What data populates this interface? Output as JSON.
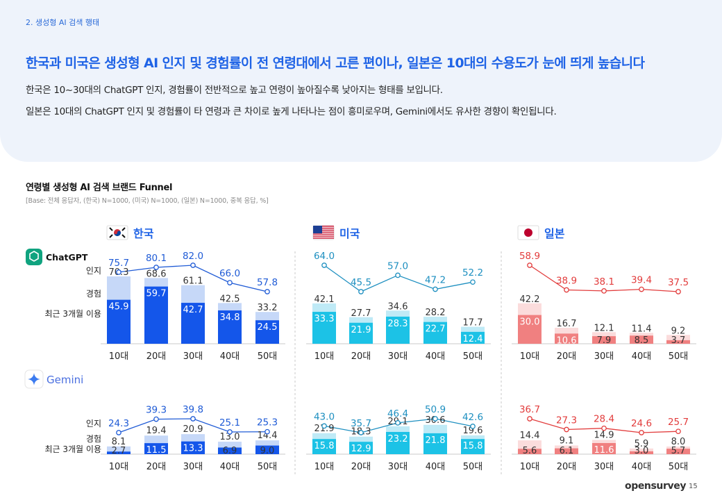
{
  "header": {
    "section_label": "2. 생성형 AI 검색 행태",
    "headline": "한국과 미국은 생성형 AI 인지 및 경험률이 전 연령대에서 고른 편이나, 일본은 10대의 수용도가 눈에 띄게 높습니다",
    "desc_line1": "한국은 10~30대의 ChatGPT 인지, 경험률이 전반적으로 높고 연령이 높아질수록 낮아지는 형태를 보입니다.",
    "desc_line2": "일본은 10대의 ChatGPT 인지 및 경험률이 타 연령과 큰 차이로 높게 나타나는 점이 흥미로우며, Gemini에서도 유사한 경향이 확인됩니다."
  },
  "chart_header": {
    "title": "연령별 생성형 AI 검색 브랜드 Funnel",
    "base_note": "[Base: 전체 응답자, (한국) N=1000, (미국) N=1000, (일본) N=1000, 중복 응답, %]"
  },
  "colors": {
    "accent": "#1f63e6",
    "korea_dark": "#1456ea",
    "korea_light": "#c6d8f8",
    "us_dark": "#1cc2e6",
    "us_light": "#bfeaf6",
    "us_line": "#1d8fc0",
    "japan_dark": "#f08080",
    "japan_light": "#fbdcdc",
    "japan_line": "#e23c3c",
    "korea_line": "#1f5bd6"
  },
  "chart_data": {
    "type": "bar",
    "categories": [
      "10대",
      "20대",
      "30대",
      "40대",
      "50대"
    ],
    "row_labels": {
      "awareness": "인지",
      "experience": "경험",
      "recent": "최근 3개월 이용"
    },
    "brands": [
      {
        "key": "chatgpt",
        "name": "ChatGPT",
        "icon": "chatgpt-logo-icon"
      },
      {
        "key": "gemini",
        "name": "Gemini",
        "icon": "gemini-sparkle-icon"
      }
    ],
    "countries": [
      {
        "key": "korea",
        "name": "한국",
        "flag": "korea-flag-icon"
      },
      {
        "key": "us",
        "name": "미국",
        "flag": "us-flag-icon"
      },
      {
        "key": "japan",
        "name": "일본",
        "flag": "japan-flag-icon"
      }
    ],
    "panels": [
      {
        "brand": "ChatGPT",
        "country": "한국",
        "awareness": [
          75.7,
          80.1,
          82.0,
          66.0,
          57.8
        ],
        "experience": [
          70.3,
          68.6,
          61.1,
          42.5,
          33.2
        ],
        "recent": [
          45.9,
          59.7,
          42.7,
          34.8,
          24.5
        ]
      },
      {
        "brand": "ChatGPT",
        "country": "미국",
        "awareness": [
          64.0,
          45.5,
          57.0,
          47.2,
          52.2
        ],
        "experience": [
          42.1,
          27.7,
          34.6,
          28.2,
          17.7
        ],
        "recent": [
          33.3,
          21.9,
          28.3,
          22.7,
          12.4
        ]
      },
      {
        "brand": "ChatGPT",
        "country": "일본",
        "awareness": [
          58.9,
          38.9,
          38.1,
          39.4,
          37.5
        ],
        "experience": [
          42.2,
          16.7,
          12.1,
          11.4,
          9.2
        ],
        "recent": [
          30.0,
          10.6,
          7.9,
          8.5,
          3.7
        ]
      },
      {
        "brand": "Gemini",
        "country": "한국",
        "awareness": [
          24.3,
          39.3,
          39.8,
          25.1,
          25.3
        ],
        "experience": [
          8.1,
          19.4,
          20.9,
          13.0,
          14.4
        ],
        "recent": [
          2.7,
          11.5,
          13.3,
          6.9,
          9.0
        ]
      },
      {
        "brand": "Gemini",
        "country": "미국",
        "awareness": [
          43.0,
          35.7,
          46.4,
          50.9,
          42.6
        ],
        "experience": [
          21.9,
          18.3,
          29.1,
          30.6,
          19.6
        ],
        "recent": [
          15.8,
          12.9,
          23.2,
          21.8,
          15.8
        ]
      },
      {
        "brand": "Gemini",
        "country": "일본",
        "awareness": [
          36.7,
          27.3,
          28.4,
          24.6,
          25.7
        ],
        "experience": [
          14.4,
          9.1,
          14.9,
          5.9,
          8.0
        ],
        "recent": [
          5.6,
          6.1,
          11.6,
          3.0,
          5.7
        ]
      }
    ]
  },
  "footer": {
    "brand": "opensurvey",
    "page": "15"
  }
}
